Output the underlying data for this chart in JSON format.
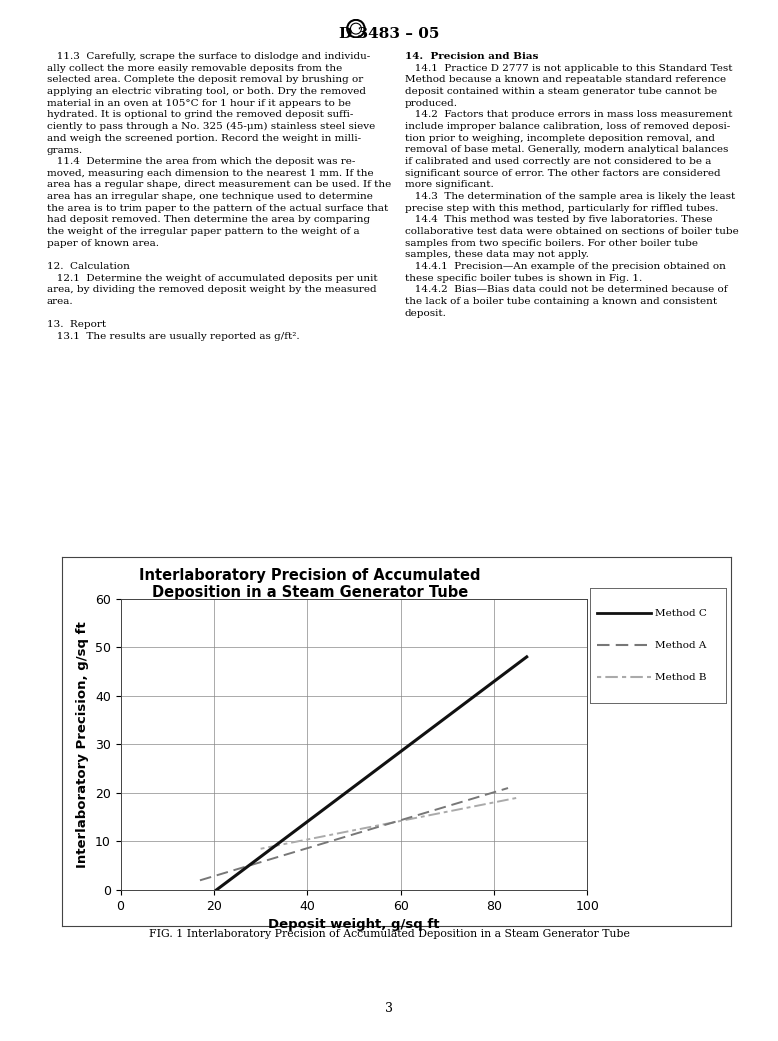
{
  "title_line1": "Interlaboratory Precision of Accumulated",
  "title_line2": "Deposition in a Steam Generator Tube",
  "xlabel": "Deposit weight, g/sq ft",
  "ylabel": "Interlaboratory Precision, g/sq ft",
  "xlim": [
    0,
    100
  ],
  "ylim": [
    0,
    60
  ],
  "xticks": [
    0,
    20,
    40,
    60,
    80,
    100
  ],
  "yticks": [
    0,
    10,
    20,
    30,
    40,
    50,
    60
  ],
  "method_c": {
    "x": [
      20.5,
      87.0
    ],
    "y": [
      0.0,
      48.0
    ],
    "color": "#111111",
    "linewidth": 2.2,
    "label": "Method C"
  },
  "method_a": {
    "x": [
      17.0,
      83.0
    ],
    "y": [
      2.0,
      21.0
    ],
    "color": "#777777",
    "linewidth": 1.4,
    "label": "Method A"
  },
  "method_b": {
    "x": [
      30.0,
      85.0
    ],
    "y": [
      8.5,
      19.0
    ],
    "color": "#aaaaaa",
    "linewidth": 1.4,
    "label": "Method B"
  },
  "fig_caption": "FIG. 1 Interlaboratory Precision of Accumulated Deposition in a Steam Generator Tube",
  "page_number": "3",
  "doc_title": "D 3483 – 05",
  "background_color": "#ffffff",
  "grid_color": "#888888",
  "title_fontsize": 10.5,
  "axis_label_fontsize": 9.5,
  "tick_fontsize": 9,
  "legend_fontsize": 7.5,
  "text_left": [
    "   11.3  Carefully, scrape the surface to dislodge and individu-",
    "ally collect the more easily removable deposits from the",
    "selected area. Complete the deposit removal by brushing or",
    "applying an electric vibrating tool, or both. Dry the removed",
    "material in an oven at 105°C for 1 hour if it appears to be",
    "hydrated. It is optional to grind the removed deposit suffi-",
    "ciently to pass through a No. 325 (45-μm) stainless steel sieve",
    "and weigh the screened portion. Record the weight in milli-",
    "grams.",
    "   11.4  Determine the area from which the deposit was re-",
    "moved, measuring each dimension to the nearest 1 mm. If the",
    "area has a regular shape, direct measurement can be used. If the",
    "area has an irregular shape, one technique used to determine",
    "the area is to trim paper to the pattern of the actual surface that",
    "had deposit removed. Then determine the area by comparing",
    "the weight of the irregular paper pattern to the weight of a",
    "paper of known area.",
    "",
    "12.  Calculation",
    "   12.1  Determine the weight of accumulated deposits per unit",
    "area, by dividing the removed deposit weight by the measured",
    "area.",
    "",
    "13.  Report",
    "   13.1  The results are usually reported as g/ft²."
  ],
  "text_right": [
    "14.  Precision and Bias",
    "   14.1  Practice D 2777 is not applicable to this Standard Test",
    "Method because a known and repeatable standard reference",
    "deposit contained within a steam generator tube cannot be",
    "produced.",
    "   14.2  Factors that produce errors in mass loss measurement",
    "include improper balance calibration, loss of removed deposi-",
    "tion prior to weighing, incomplete deposition removal, and",
    "removal of base metal. Generally, modern analytical balances",
    "if calibrated and used correctly are not considered to be a",
    "significant source of error. The other factors are considered",
    "more significant.",
    "   14.3  The determination of the sample area is likely the least",
    "precise step with this method, particularly for riffled tubes.",
    "   14.4  This method was tested by five laboratories. These",
    "collaborative test data were obtained on sections of boiler tube",
    "samples from two specific boilers. For other boiler tube",
    "samples, these data may not apply.",
    "   14.4.1  Precision—An example of the precision obtained on",
    "these specific boiler tubes is shown in Fig. 1.",
    "   14.4.2  Bias—Bias data could not be determined because of",
    "the lack of a boiler tube containing a known and consistent",
    "deposit."
  ]
}
